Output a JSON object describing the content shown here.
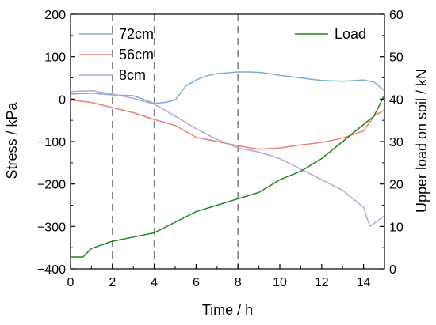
{
  "chart_data": {
    "type": "line",
    "xlabel": "Time / h",
    "ylabel_left": "Stress / kPa",
    "ylabel_right": "Upper load on soil / kN",
    "xlim": [
      0,
      15
    ],
    "ylim_left": [
      -400,
      200
    ],
    "ylim_right": [
      0,
      60
    ],
    "xticks": [
      "0",
      "2",
      "4",
      "6",
      "8",
      "10",
      "12",
      "14"
    ],
    "yticks_left": [
      "200",
      "100",
      "0",
      "−100",
      "−200",
      "−300",
      "−400"
    ],
    "yticks_right": [
      "60",
      "50",
      "40",
      "30",
      "20",
      "10",
      "0"
    ],
    "vlines": [
      2,
      4,
      8
    ],
    "legend_left": [
      "72cm",
      "56cm",
      "8cm"
    ],
    "legend_right": [
      "Load"
    ],
    "series": [
      {
        "name": "72cm",
        "axis": "left",
        "color": "#7aaed6",
        "points": [
          [
            0,
            12
          ],
          [
            1,
            14
          ],
          [
            2,
            10
          ],
          [
            3,
            8
          ],
          [
            4,
            -10
          ],
          [
            4.5,
            -8
          ],
          [
            5,
            -2
          ],
          [
            5.5,
            30
          ],
          [
            6,
            45
          ],
          [
            6.5,
            55
          ],
          [
            7,
            60
          ],
          [
            7.5,
            62
          ],
          [
            8,
            64
          ],
          [
            8.5,
            64
          ],
          [
            9,
            63
          ],
          [
            9.5,
            60
          ],
          [
            10,
            56
          ],
          [
            11,
            50
          ],
          [
            12,
            44
          ],
          [
            13,
            42
          ],
          [
            14,
            45
          ],
          [
            14.5,
            40
          ],
          [
            15,
            20
          ]
        ]
      },
      {
        "name": "56cm",
        "axis": "left",
        "color": "#f07f76",
        "points": [
          [
            0,
            -2
          ],
          [
            1,
            -8
          ],
          [
            2,
            -20
          ],
          [
            3,
            -32
          ],
          [
            4,
            -48
          ],
          [
            5,
            -62
          ],
          [
            6,
            -90
          ],
          [
            7,
            -100
          ],
          [
            8,
            -110
          ],
          [
            9,
            -118
          ],
          [
            10,
            -115
          ],
          [
            11,
            -108
          ],
          [
            12,
            -102
          ],
          [
            13,
            -92
          ],
          [
            14,
            -75
          ],
          [
            14.5,
            -40
          ],
          [
            15,
            -25
          ]
        ]
      },
      {
        "name": "8cm",
        "axis": "left",
        "color": "#b9a5d6",
        "points": [
          [
            0,
            18
          ],
          [
            1,
            20
          ],
          [
            2,
            12
          ],
          [
            3,
            2
          ],
          [
            4,
            -12
          ],
          [
            5,
            -40
          ],
          [
            6,
            -70
          ],
          [
            7,
            -95
          ],
          [
            8,
            -115
          ],
          [
            9,
            -125
          ],
          [
            10,
            -140
          ],
          [
            11,
            -165
          ],
          [
            12,
            -190
          ],
          [
            13,
            -215
          ],
          [
            14,
            -255
          ],
          [
            14.3,
            -300
          ],
          [
            15,
            -275
          ]
        ]
      },
      {
        "name": "Load",
        "axis": "right",
        "color": "#1b8a1b",
        "points": [
          [
            0,
            2.8
          ],
          [
            0.6,
            2.8
          ],
          [
            1,
            4.8
          ],
          [
            2,
            6.5
          ],
          [
            3,
            7.5
          ],
          [
            4,
            8.5
          ],
          [
            5,
            11
          ],
          [
            6,
            13.5
          ],
          [
            7,
            15
          ],
          [
            8,
            16.5
          ],
          [
            9,
            18
          ],
          [
            10,
            21
          ],
          [
            11,
            23
          ],
          [
            12,
            26
          ],
          [
            13,
            30
          ],
          [
            14,
            34
          ],
          [
            14.5,
            36
          ],
          [
            15,
            41
          ]
        ]
      }
    ]
  }
}
